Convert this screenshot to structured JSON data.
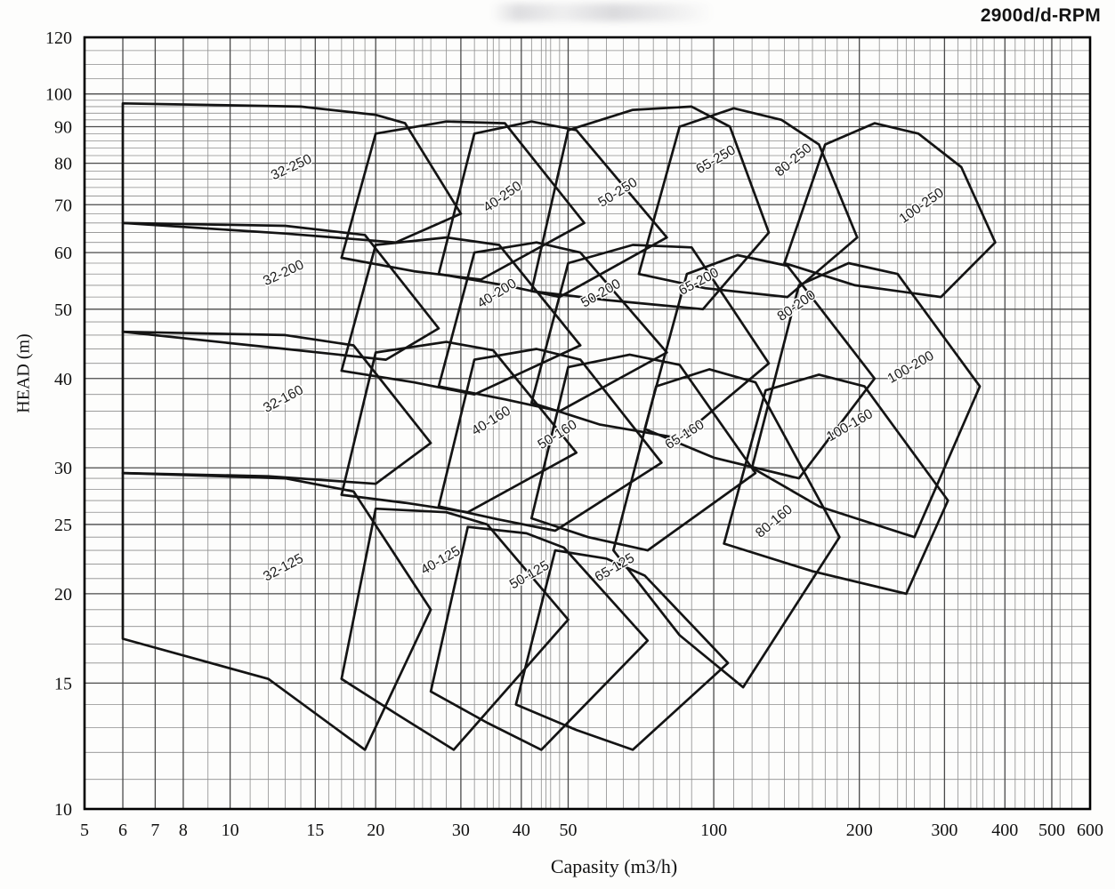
{
  "colors": {
    "envelope_line": "#141414",
    "grid_minor": "#8d8d8d",
    "grid_major": "#4a4a4a",
    "border": "#000000",
    "text": "#111111"
  },
  "chart_data": {
    "type": "area",
    "title": "2900d/d-RPM",
    "xlabel": "Capasity (m3/h)",
    "ylabel": "HEAD (m)",
    "x_scale": "log",
    "y_scale": "log",
    "xlim": [
      5,
      600
    ],
    "ylim": [
      10,
      120
    ],
    "grid": true,
    "legend": "none",
    "x_ticks_labeled": [
      5,
      6,
      7,
      8,
      10,
      15,
      20,
      30,
      40,
      50,
      100,
      200,
      300,
      400,
      500,
      600
    ],
    "x_grid_minor": [
      9,
      11,
      12,
      13,
      14,
      16,
      17,
      18,
      19,
      22,
      24,
      25,
      26,
      28,
      32,
      34,
      35,
      36,
      38,
      42,
      44,
      45,
      46,
      48,
      55,
      60,
      65,
      70,
      75,
      80,
      85,
      90,
      110,
      120,
      130,
      140,
      150,
      160,
      170,
      180,
      190,
      220,
      240,
      250,
      260,
      280,
      320,
      340,
      350,
      360,
      380,
      420,
      440,
      460,
      480,
      520,
      550
    ],
    "y_ticks_labeled": [
      10,
      15,
      20,
      25,
      30,
      40,
      50,
      60,
      70,
      80,
      90,
      100,
      120
    ],
    "y_grid_minor": [
      11,
      12,
      13,
      14,
      16,
      17,
      18,
      19,
      21,
      22,
      23,
      24,
      26,
      27,
      28,
      29,
      32,
      34,
      36,
      38,
      42,
      44,
      46,
      48,
      52,
      54,
      56,
      58,
      62,
      64,
      66,
      68,
      72,
      74,
      76,
      78,
      82,
      84,
      86,
      88,
      92,
      94,
      96,
      98,
      105,
      110,
      115
    ],
    "series": [
      {
        "name": "32-125",
        "label": "32-125",
        "label_pos": [
          13,
          21.5
        ],
        "label_angle": -28,
        "points": [
          [
            6,
            17.3
          ],
          [
            6,
            29.5
          ],
          [
            13,
            29
          ],
          [
            18,
            27.8
          ],
          [
            26,
            19
          ],
          [
            19,
            12.1
          ],
          [
            12,
            15.2
          ]
        ]
      },
      {
        "name": "40-125",
        "label": "40-125",
        "label_pos": [
          27.5,
          22
        ],
        "label_angle": -30,
        "points": [
          [
            17,
            15.2
          ],
          [
            20,
            26.3
          ],
          [
            28,
            26
          ],
          [
            34,
            25
          ],
          [
            50,
            18.4
          ],
          [
            29,
            12.1
          ],
          [
            22,
            13.6
          ]
        ]
      },
      {
        "name": "50-125",
        "label": "50-125",
        "label_pos": [
          42,
          21
        ],
        "label_angle": -30,
        "points": [
          [
            26,
            14.6
          ],
          [
            31,
            24.8
          ],
          [
            41,
            24.3
          ],
          [
            49,
            23.2
          ],
          [
            73,
            17.2
          ],
          [
            44,
            12.1
          ],
          [
            34,
            13.2
          ]
        ]
      },
      {
        "name": "65-125",
        "label": "65-125",
        "label_pos": [
          63,
          21.5
        ],
        "label_angle": -30,
        "points": [
          [
            39,
            14
          ],
          [
            47,
            23
          ],
          [
            60,
            22.4
          ],
          [
            72,
            21.2
          ],
          [
            107,
            16
          ],
          [
            68,
            12.1
          ],
          [
            52,
            12.9
          ]
        ]
      },
      {
        "name": "32-160",
        "label": "32-160",
        "label_pos": [
          13,
          37
        ],
        "label_angle": -28,
        "points": [
          [
            6,
            29.5
          ],
          [
            6,
            46.5
          ],
          [
            13,
            46
          ],
          [
            18,
            44.5
          ],
          [
            26,
            32.5
          ],
          [
            20,
            28.5
          ],
          [
            12,
            29.2
          ]
        ]
      },
      {
        "name": "40-160",
        "label": "40-160",
        "label_pos": [
          35,
          34.5
        ],
        "label_angle": -32,
        "points": [
          [
            17,
            27.5
          ],
          [
            20,
            43.5
          ],
          [
            28,
            45
          ],
          [
            35,
            43.8
          ],
          [
            52,
            31.5
          ],
          [
            31,
            26
          ],
          [
            23,
            26.8
          ]
        ]
      },
      {
        "name": "50-160",
        "label": "50-160",
        "label_pos": [
          48,
          33
        ],
        "label_angle": -32,
        "points": [
          [
            27,
            26.5
          ],
          [
            32,
            42.5
          ],
          [
            43,
            44
          ],
          [
            53,
            42.5
          ],
          [
            78,
            30.5
          ],
          [
            47,
            24.5
          ],
          [
            36,
            25.4
          ]
        ]
      },
      {
        "name": "65-160",
        "label": "65-160",
        "label_pos": [
          88,
          33
        ],
        "label_angle": -32,
        "points": [
          [
            42,
            25.5
          ],
          [
            50,
            41.5
          ],
          [
            67,
            43.2
          ],
          [
            85,
            41.8
          ],
          [
            122,
            29.5
          ],
          [
            73,
            23
          ],
          [
            55,
            24
          ]
        ]
      },
      {
        "name": "80-160",
        "label": "80-160",
        "label_pos": [
          135,
          25
        ],
        "label_angle": -40,
        "points": [
          [
            62,
            23
          ],
          [
            76,
            39
          ],
          [
            98,
            41.2
          ],
          [
            122,
            39.5
          ],
          [
            182,
            24
          ],
          [
            115,
            14.8
          ],
          [
            85,
            17.5
          ]
        ]
      },
      {
        "name": "100-160",
        "label": "100-160",
        "label_pos": [
          193,
          34
        ],
        "label_angle": -30,
        "points": [
          [
            105,
            23.5
          ],
          [
            128,
            38.5
          ],
          [
            165,
            40.5
          ],
          [
            205,
            39
          ],
          [
            305,
            27
          ],
          [
            250,
            20
          ],
          [
            160,
            21.5
          ]
        ]
      },
      {
        "name": "32-200",
        "label": "32-200",
        "label_pos": [
          13,
          55.5
        ],
        "label_angle": -25,
        "points": [
          [
            6,
            46.5
          ],
          [
            6,
            66
          ],
          [
            13,
            65.4
          ],
          [
            19,
            63.5
          ],
          [
            27,
            47
          ],
          [
            21,
            42.5
          ],
          [
            13,
            44
          ]
        ]
      },
      {
        "name": "40-200",
        "label": "40-200",
        "label_pos": [
          36,
          52
        ],
        "label_angle": -32,
        "points": [
          [
            17,
            41
          ],
          [
            20,
            61.5
          ],
          [
            28,
            63
          ],
          [
            36,
            61.5
          ],
          [
            53,
            44.5
          ],
          [
            32,
            38
          ],
          [
            24,
            39.5
          ]
        ]
      },
      {
        "name": "50-200",
        "label": "50-200",
        "label_pos": [
          59,
          52
        ],
        "label_angle": -30,
        "points": [
          [
            27,
            39
          ],
          [
            32,
            60
          ],
          [
            43,
            62
          ],
          [
            53,
            60
          ],
          [
            80,
            43.5
          ],
          [
            48,
            36
          ],
          [
            37,
            37.4
          ]
        ]
      },
      {
        "name": "65-200",
        "label": "65-200",
        "label_pos": [
          94,
          54
        ],
        "label_angle": -28,
        "points": [
          [
            42,
            37
          ],
          [
            50,
            58
          ],
          [
            68,
            61.5
          ],
          [
            90,
            61
          ],
          [
            130,
            42
          ],
          [
            85,
            33
          ],
          [
            58,
            34.5
          ]
        ]
      },
      {
        "name": "80-200",
        "label": "80-200",
        "label_pos": [
          150,
          50
        ],
        "label_angle": -35,
        "points": [
          [
            72,
            34
          ],
          [
            88,
            56
          ],
          [
            112,
            59.5
          ],
          [
            142,
            57.5
          ],
          [
            215,
            40
          ],
          [
            150,
            29
          ],
          [
            100,
            31
          ]
        ]
      },
      {
        "name": "100-200",
        "label": "100-200",
        "label_pos": [
          258,
          41
        ],
        "label_angle": -30,
        "points": [
          [
            120,
            30
          ],
          [
            150,
            54
          ],
          [
            190,
            58
          ],
          [
            240,
            56
          ],
          [
            355,
            39
          ],
          [
            260,
            24
          ],
          [
            165,
            26.5
          ]
        ]
      },
      {
        "name": "32-250",
        "label": "32-250",
        "label_pos": [
          13.5,
          78
        ],
        "label_angle": -25,
        "points": [
          [
            6,
            66
          ],
          [
            6,
            97
          ],
          [
            14,
            96
          ],
          [
            20,
            93.5
          ],
          [
            23,
            91
          ],
          [
            30,
            68
          ],
          [
            22,
            62
          ],
          [
            13,
            63.8
          ]
        ]
      },
      {
        "name": "40-250",
        "label": "40-250",
        "label_pos": [
          37,
          71
        ],
        "label_angle": -35,
        "points": [
          [
            17,
            59
          ],
          [
            20,
            88
          ],
          [
            28,
            91.5
          ],
          [
            37,
            91
          ],
          [
            54,
            66
          ],
          [
            33,
            55
          ],
          [
            24,
            56.5
          ]
        ]
      },
      {
        "name": "50-250",
        "label": "50-250",
        "label_pos": [
          64,
          72
        ],
        "label_angle": -32,
        "points": [
          [
            27,
            56
          ],
          [
            32,
            88
          ],
          [
            42,
            91.5
          ],
          [
            52,
            89
          ],
          [
            80,
            63
          ],
          [
            48,
            52
          ],
          [
            37,
            54
          ]
        ]
      },
      {
        "name": "65-250",
        "label": "65-250",
        "label_pos": [
          102,
          80
        ],
        "label_angle": -30,
        "points": [
          [
            42,
            53
          ],
          [
            50,
            89
          ],
          [
            68,
            95
          ],
          [
            90,
            96
          ],
          [
            108,
            90
          ],
          [
            130,
            64
          ],
          [
            95,
            50
          ],
          [
            60,
            51.5
          ]
        ]
      },
      {
        "name": "80-250",
        "label": "80-250",
        "label_pos": [
          148,
          80
        ],
        "label_angle": -40,
        "points": [
          [
            70,
            56
          ],
          [
            85,
            90
          ],
          [
            110,
            95.5
          ],
          [
            138,
            92
          ],
          [
            165,
            85
          ],
          [
            198,
            63
          ],
          [
            142,
            52
          ],
          [
            96,
            53.5
          ]
        ]
      },
      {
        "name": "100-250",
        "label": "100-250",
        "label_pos": [
          272,
          69
        ],
        "label_angle": -35,
        "points": [
          [
            140,
            58
          ],
          [
            170,
            85
          ],
          [
            215,
            91
          ],
          [
            265,
            88
          ],
          [
            325,
            79
          ],
          [
            382,
            62
          ],
          [
            295,
            52
          ],
          [
            196,
            54
          ]
        ]
      }
    ]
  }
}
